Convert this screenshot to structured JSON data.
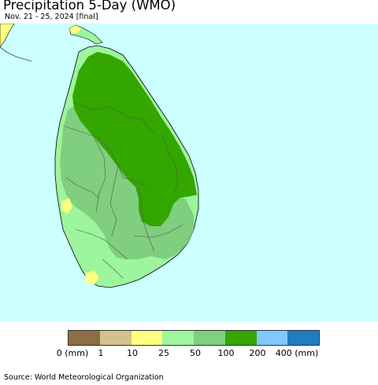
{
  "header": {
    "title": "Precipitation 5-Day (WMO)",
    "subtitle": "Nov. 21 - 25, 2024 [final]"
  },
  "map": {
    "region": "Sri Lanka",
    "ocean_color": "#ccffff",
    "dominant_bins": [
      "100-200 mm in north and east",
      "25-100 mm in west and south"
    ]
  },
  "legend": {
    "colors": [
      "#8b6d46",
      "#d3c28b",
      "#ffff80",
      "#9df59d",
      "#7fcf7f",
      "#33a600",
      "#80c8ff",
      "#1f7cc0"
    ],
    "ticks": [
      "0 (mm)",
      "1",
      "10",
      "25",
      "50",
      "100",
      "200",
      "400 (mm)"
    ]
  },
  "footer": {
    "source": "Source: World Meteorological Organization"
  }
}
